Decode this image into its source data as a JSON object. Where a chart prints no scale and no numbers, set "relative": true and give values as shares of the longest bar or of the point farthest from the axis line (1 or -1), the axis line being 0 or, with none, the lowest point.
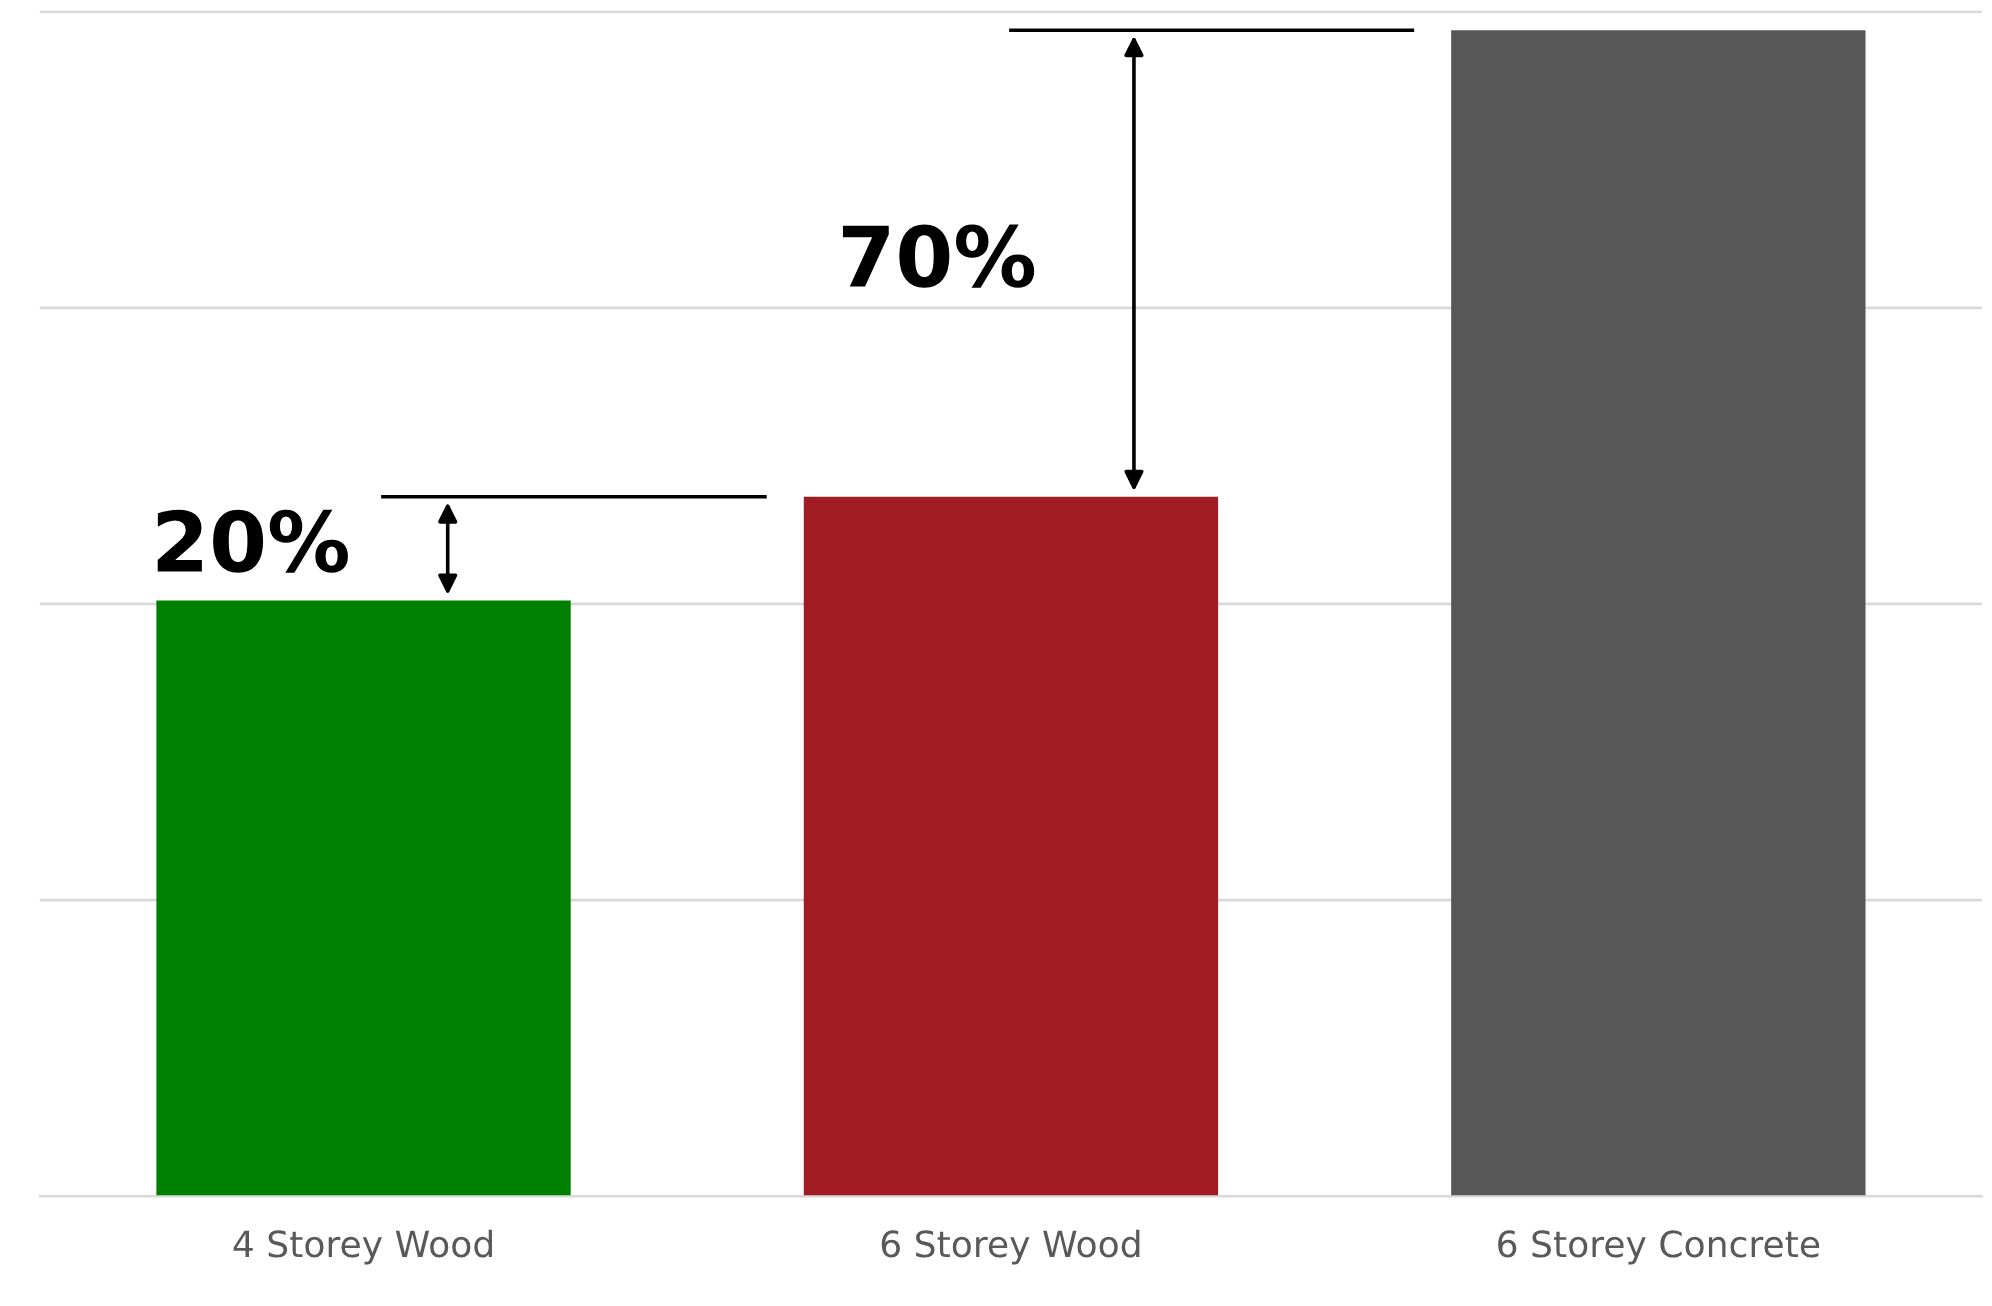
{
  "chart_data": {
    "type": "bar",
    "relative": true,
    "categories": [
      "4 Storey Wood",
      "6 Storey Wood",
      "6 Storey Concrete"
    ],
    "values": [
      0.511,
      0.6,
      1
    ],
    "colors": [
      "#008000",
      "#a01c22",
      "#575757"
    ],
    "annotations": [
      "20%",
      "70%"
    ],
    "grid": "y",
    "tick_labels": "x"
  }
}
